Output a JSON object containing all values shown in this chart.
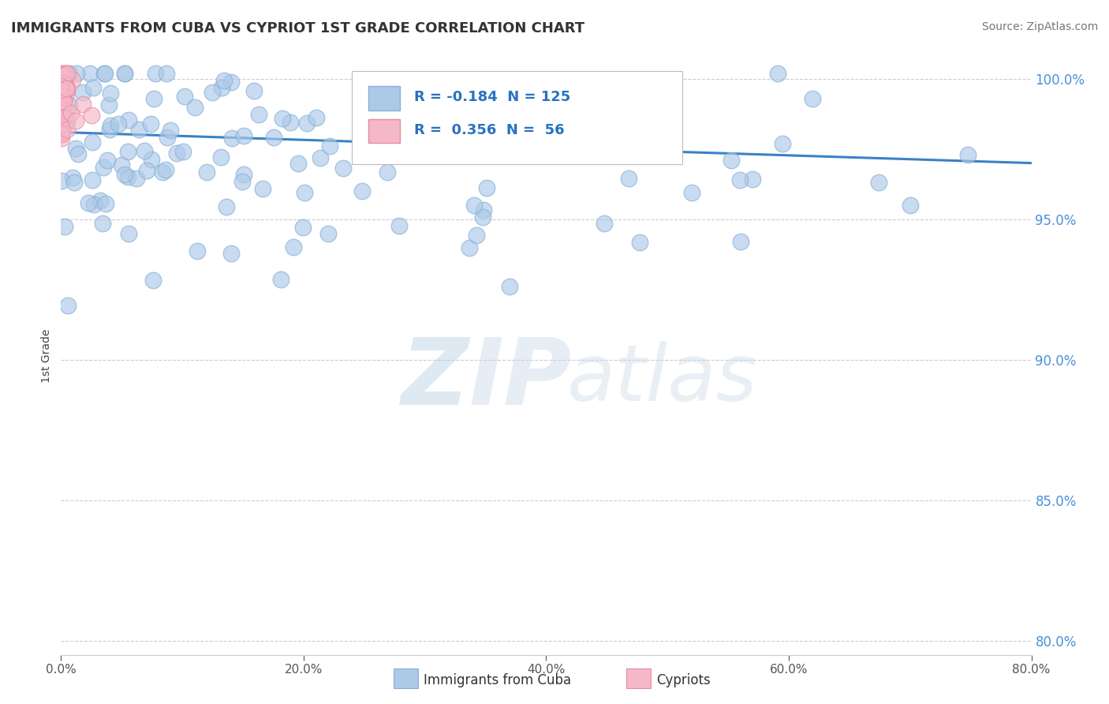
{
  "title": "IMMIGRANTS FROM CUBA VS CYPRIOT 1ST GRADE CORRELATION CHART",
  "source": "Source: ZipAtlas.com",
  "ylabel": "1st Grade",
  "xlim": [
    0.0,
    0.8
  ],
  "ylim": [
    0.795,
    1.008
  ],
  "yticks": [
    0.8,
    0.85,
    0.9,
    0.95,
    1.0
  ],
  "xticks": [
    0.0,
    0.2,
    0.4,
    0.6,
    0.8
  ],
  "blue_R": -0.184,
  "blue_N": 125,
  "pink_R": 0.356,
  "pink_N": 56,
  "blue_color": "#adc9e8",
  "blue_edge": "#85b0d8",
  "pink_color": "#f5b8c8",
  "pink_edge": "#e88aa2",
  "trendline_color": "#3a82c4",
  "grid_color": "#cccccc",
  "background_color": "#ffffff",
  "watermark_Z": "Z",
  "watermark_IP": "IP",
  "watermark_atlas": "atlas",
  "legend_blue_label": "Immigrants from Cuba",
  "legend_pink_label": "Cypriots",
  "trendline_y0": 0.981,
  "trendline_y1": 0.97
}
